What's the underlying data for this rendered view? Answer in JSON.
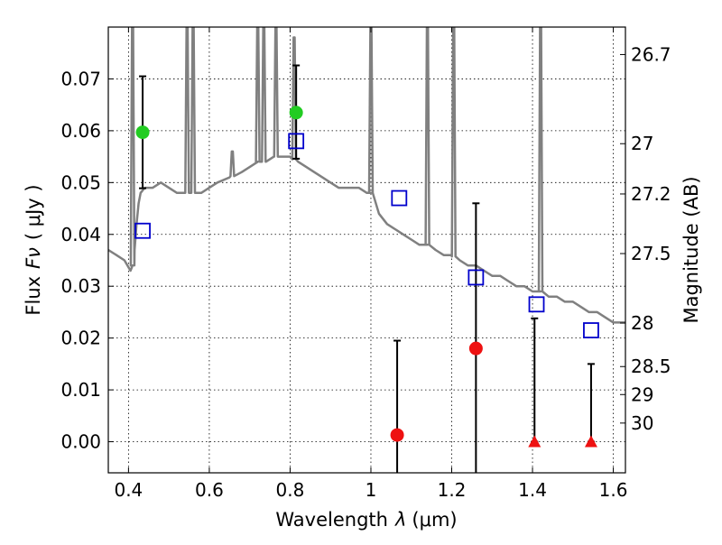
{
  "chart_data": {
    "type": "scatter",
    "title": "",
    "xlabel_pre": "Wavelength",
    "xlabel_sym": "λ",
    "xlabel_unit": "(μm)",
    "ylabel_pre": "Flux",
    "ylabel_sym": "Fν",
    "ylabel_unit": "( μJy )",
    "ylabel_right": "Magnitude (AB)",
    "xlim": [
      0.35,
      1.63
    ],
    "ylim": [
      -0.006,
      0.08
    ],
    "grid": true,
    "x_ticks": [
      {
        "value": 0.4,
        "label": "0.4"
      },
      {
        "value": 0.6,
        "label": "0.6"
      },
      {
        "value": 0.8,
        "label": "0.8"
      },
      {
        "value": 1.0,
        "label": "1"
      },
      {
        "value": 1.2,
        "label": "1.2"
      },
      {
        "value": 1.4,
        "label": "1.4"
      },
      {
        "value": 1.6,
        "label": "1.6"
      }
    ],
    "y_ticks": [
      {
        "value": 0.0,
        "label": "0.00"
      },
      {
        "value": 0.01,
        "label": "0.01"
      },
      {
        "value": 0.02,
        "label": "0.02"
      },
      {
        "value": 0.03,
        "label": "0.03"
      },
      {
        "value": 0.04,
        "label": "0.04"
      },
      {
        "value": 0.05,
        "label": "0.05"
      },
      {
        "value": 0.06,
        "label": "0.06"
      },
      {
        "value": 0.07,
        "label": "0.07"
      }
    ],
    "right_ticks": [
      {
        "label": "26.7",
        "flux": 0.0747
      },
      {
        "label": "27",
        "flux": 0.0575
      },
      {
        "label": "27.2",
        "flux": 0.0478
      },
      {
        "label": "27.5",
        "flux": 0.0363
      },
      {
        "label": "28",
        "flux": 0.0229
      },
      {
        "label": "28.5",
        "flux": 0.0145
      },
      {
        "label": "29",
        "flux": 0.0091
      },
      {
        "label": "30",
        "flux": 0.0036
      }
    ],
    "colors": {
      "sed": "#808080",
      "model": "#0000cc",
      "detection": "#22cc22",
      "nondetection": "#ee1111",
      "errorbar": "#000000"
    },
    "series": [
      {
        "kind": "sed",
        "x": [
          0.35,
          0.37,
          0.39,
          0.405,
          0.41,
          0.415,
          0.42,
          0.425,
          0.43,
          0.44,
          0.46,
          0.48,
          0.5,
          0.52,
          0.55,
          0.58,
          0.6,
          0.62,
          0.65,
          0.68,
          0.7,
          0.72,
          0.74,
          0.76,
          0.78,
          0.8,
          0.82,
          0.84,
          0.86,
          0.88,
          0.9,
          0.92,
          0.95,
          0.97,
          0.99,
          1.0,
          1.02,
          1.04,
          1.06,
          1.08,
          1.1,
          1.12,
          1.14,
          1.16,
          1.18,
          1.2,
          1.22,
          1.24,
          1.26,
          1.28,
          1.3,
          1.32,
          1.34,
          1.36,
          1.38,
          1.4,
          1.42,
          1.44,
          1.46,
          1.48,
          1.5,
          1.52,
          1.54,
          1.56,
          1.58,
          1.6,
          1.63
        ],
        "y": [
          0.037,
          0.036,
          0.035,
          0.033,
          0.034,
          0.037,
          0.042,
          0.046,
          0.048,
          0.049,
          0.049,
          0.05,
          0.049,
          0.048,
          0.048,
          0.048,
          0.049,
          0.05,
          0.051,
          0.052,
          0.053,
          0.054,
          0.054,
          0.055,
          0.055,
          0.055,
          0.054,
          0.053,
          0.052,
          0.051,
          0.05,
          0.049,
          0.049,
          0.049,
          0.048,
          0.048,
          0.044,
          0.042,
          0.041,
          0.04,
          0.039,
          0.038,
          0.038,
          0.037,
          0.036,
          0.036,
          0.035,
          0.034,
          0.034,
          0.033,
          0.032,
          0.032,
          0.031,
          0.03,
          0.03,
          0.029,
          0.029,
          0.028,
          0.028,
          0.027,
          0.027,
          0.026,
          0.025,
          0.025,
          0.024,
          0.023,
          0.023
        ],
        "lines": [
          {
            "x": 0.41,
            "peak": 0.08
          },
          {
            "x": 0.545,
            "peak": 0.08
          },
          {
            "x": 0.56,
            "peak": 0.08
          },
          {
            "x": 0.657,
            "peak": 0.056
          },
          {
            "x": 0.72,
            "peak": 0.08
          },
          {
            "x": 0.735,
            "peak": 0.08
          },
          {
            "x": 0.765,
            "peak": 0.08
          },
          {
            "x": 0.81,
            "peak": 0.078
          },
          {
            "x": 1.0,
            "peak": 0.08
          },
          {
            "x": 1.14,
            "peak": 0.08
          },
          {
            "x": 1.205,
            "peak": 0.08
          },
          {
            "x": 1.42,
            "peak": 0.08
          }
        ]
      },
      {
        "kind": "model",
        "name": "",
        "x": [
          0.435,
          0.815,
          1.07,
          1.26,
          1.41,
          1.545
        ],
        "y": [
          0.0407,
          0.058,
          0.047,
          0.0317,
          0.0265,
          0.0215
        ]
      },
      {
        "kind": "detection",
        "name": "",
        "x": [
          0.435,
          0.815
        ],
        "y": [
          0.0597,
          0.0635
        ],
        "yerr_low": [
          0.0489,
          0.0546
        ],
        "yerr_high": [
          0.0705,
          0.0726
        ]
      },
      {
        "kind": "nondetection",
        "name": "",
        "x": [
          1.065,
          1.26
        ],
        "y": [
          0.0013,
          0.018
        ],
        "yerr_low": [
          -0.006,
          -0.006
        ],
        "yerr_high": [
          0.0195,
          0.046
        ]
      },
      {
        "kind": "upper_limit",
        "name": "",
        "x": [
          1.405,
          1.545
        ],
        "y": [
          0.0,
          0.0
        ],
        "yerr_low": [
          0.0,
          0.0
        ],
        "yerr_high": [
          0.0238,
          0.015
        ]
      }
    ]
  }
}
